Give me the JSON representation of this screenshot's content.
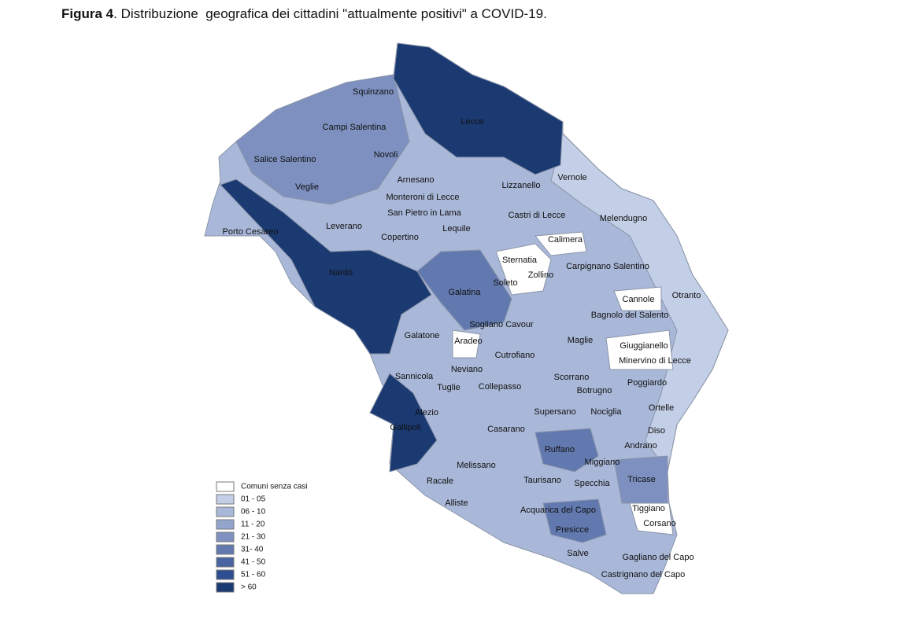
{
  "header": {
    "label": "Figura 4",
    "title": ". Distribuzione  geografica dei cittadini \"attualmente positivi\" a COVID-19."
  },
  "map": {
    "labels": [
      "Squinzano",
      "Campi Salentina",
      "Lecce",
      "Salice Salentino",
      "Novoli",
      "Arnesano",
      "Vernole",
      "Veglie",
      "Lizzanello",
      "Monteroni di Lecce",
      "San Pietro in Lama",
      "Castri di Lecce",
      "Melendugno",
      "Leverano",
      "Porto Cesareo",
      "Lequile",
      "Copertino",
      "Calimera",
      "Sternatia",
      "Carpignano Salentino",
      "Nardò",
      "Zollino",
      "Soleto",
      "Galatina",
      "Cannole",
      "Otranto",
      "Bagnolo del Salento",
      "Sogliano Cavour",
      "Galatone",
      "Aradeo",
      "Maglie",
      "Giuggianello",
      "Cutrofiano",
      "Minervino di Lecce",
      "Neviano",
      "Sannicola",
      "Scorrano",
      "Poggiardo",
      "Tuglie",
      "Collepasso",
      "Botrugno",
      "Supersano",
      "Nociglia",
      "Ortelle",
      "Alezio",
      "Diso",
      "Gallipoli",
      "Casarano",
      "Andrano",
      "Ruffano",
      "Miggiano",
      "Melissano",
      "Taurisano",
      "Specchia",
      "Tricase",
      "Racale",
      "Alliste",
      "Acquarica del Capo",
      "Tiggiano",
      "Corsano",
      "Presicce",
      "Salve",
      "Gagliano del Capo",
      "Castrignano del Capo"
    ]
  },
  "legend": {
    "items": [
      {
        "label": "Comuni senza casi",
        "color": "#ffffff"
      },
      {
        "label": "01 - 05",
        "color": "#c3cfe6"
      },
      {
        "label": "06 - 10",
        "color": "#a9b8d8"
      },
      {
        "label": "11 - 20",
        "color": "#93a5cc"
      },
      {
        "label": "21 - 30",
        "color": "#7d90bf"
      },
      {
        "label": "31- 40",
        "color": "#6279b0"
      },
      {
        "label": "41 - 50",
        "color": "#4a64a2"
      },
      {
        "label": "51 - 60",
        "color": "#2f4e92"
      },
      {
        "label": "> 60",
        "color": "#1b3a72"
      }
    ]
  }
}
